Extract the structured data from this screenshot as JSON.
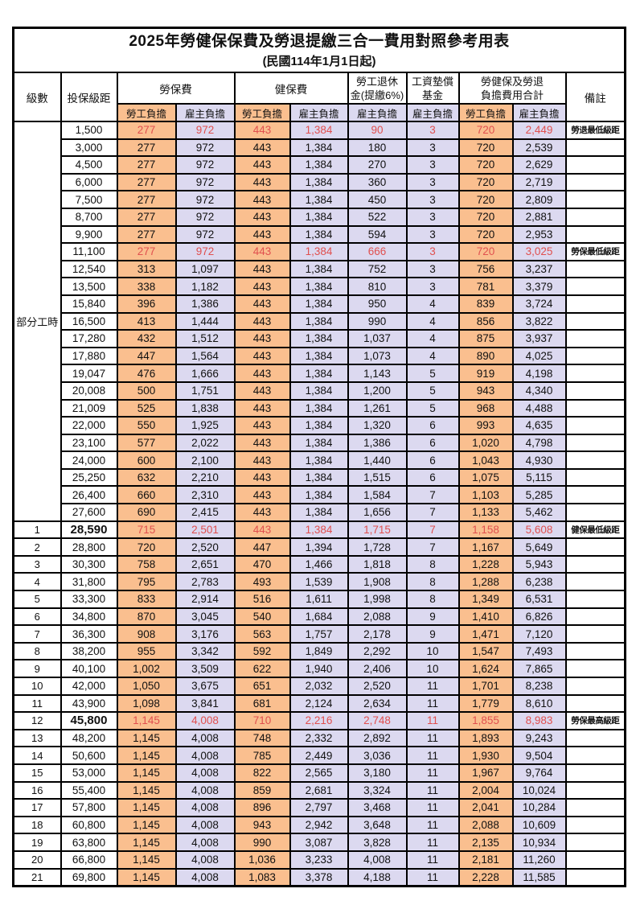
{
  "title": "2025年勞健保保費及勞退提繳三合一費用對照參考用表",
  "subtitle": "(民國114年1月1日起)",
  "colors": {
    "employee_column_bg": "#fabf8f",
    "employer_column_bg": "#dcd9f0",
    "highlight_text": "#e0504f",
    "border": "#000000"
  },
  "table": {
    "headers": {
      "level": "級數",
      "bracket": "投保級距",
      "labor_insurance": "勞保費",
      "health_insurance": "健保費",
      "pension_line1": "勞工退休",
      "pension_line2": "金(提繳6%)",
      "wage_fund_line1": "工資墊償",
      "wage_fund_line2": "基金",
      "total_line1": "勞健保及勞退",
      "total_line2": "負擔費用合計",
      "remark": "備註",
      "employee": "勞工負擔",
      "employer": "雇主負擔"
    },
    "part_time_label": "部分工時",
    "part_time_rowspan": 23,
    "rows": [
      {
        "level": "",
        "bracket": "1,500",
        "values": [
          "277",
          "972",
          "443",
          "1,384",
          "90",
          "3",
          "720",
          "2,449"
        ],
        "remark": "勞退最低級距",
        "red": true,
        "bold": false
      },
      {
        "level": "",
        "bracket": "3,000",
        "values": [
          "277",
          "972",
          "443",
          "1,384",
          "180",
          "3",
          "720",
          "2,539"
        ],
        "remark": "",
        "red": false,
        "bold": false
      },
      {
        "level": "",
        "bracket": "4,500",
        "values": [
          "277",
          "972",
          "443",
          "1,384",
          "270",
          "3",
          "720",
          "2,629"
        ],
        "remark": "",
        "red": false,
        "bold": false
      },
      {
        "level": "",
        "bracket": "6,000",
        "values": [
          "277",
          "972",
          "443",
          "1,384",
          "360",
          "3",
          "720",
          "2,719"
        ],
        "remark": "",
        "red": false,
        "bold": false
      },
      {
        "level": "",
        "bracket": "7,500",
        "values": [
          "277",
          "972",
          "443",
          "1,384",
          "450",
          "3",
          "720",
          "2,809"
        ],
        "remark": "",
        "red": false,
        "bold": false
      },
      {
        "level": "",
        "bracket": "8,700",
        "values": [
          "277",
          "972",
          "443",
          "1,384",
          "522",
          "3",
          "720",
          "2,881"
        ],
        "remark": "",
        "red": false,
        "bold": false
      },
      {
        "level": "",
        "bracket": "9,900",
        "values": [
          "277",
          "972",
          "443",
          "1,384",
          "594",
          "3",
          "720",
          "2,953"
        ],
        "remark": "",
        "red": false,
        "bold": false
      },
      {
        "level": "",
        "bracket": "11,100",
        "values": [
          "277",
          "972",
          "443",
          "1,384",
          "666",
          "3",
          "720",
          "3,025"
        ],
        "remark": "勞保最低級距",
        "red": true,
        "bold": false
      },
      {
        "level": "",
        "bracket": "12,540",
        "values": [
          "313",
          "1,097",
          "443",
          "1,384",
          "752",
          "3",
          "756",
          "3,237"
        ],
        "remark": "",
        "red": false,
        "bold": false
      },
      {
        "level": "",
        "bracket": "13,500",
        "values": [
          "338",
          "1,182",
          "443",
          "1,384",
          "810",
          "3",
          "781",
          "3,379"
        ],
        "remark": "",
        "red": false,
        "bold": false
      },
      {
        "level": "",
        "bracket": "15,840",
        "values": [
          "396",
          "1,386",
          "443",
          "1,384",
          "950",
          "4",
          "839",
          "3,724"
        ],
        "remark": "",
        "red": false,
        "bold": false
      },
      {
        "level": "",
        "bracket": "16,500",
        "values": [
          "413",
          "1,444",
          "443",
          "1,384",
          "990",
          "4",
          "856",
          "3,822"
        ],
        "remark": "",
        "red": false,
        "bold": false
      },
      {
        "level": "",
        "bracket": "17,280",
        "values": [
          "432",
          "1,512",
          "443",
          "1,384",
          "1,037",
          "4",
          "875",
          "3,937"
        ],
        "remark": "",
        "red": false,
        "bold": false
      },
      {
        "level": "",
        "bracket": "17,880",
        "values": [
          "447",
          "1,564",
          "443",
          "1,384",
          "1,073",
          "4",
          "890",
          "4,025"
        ],
        "remark": "",
        "red": false,
        "bold": false
      },
      {
        "level": "",
        "bracket": "19,047",
        "values": [
          "476",
          "1,666",
          "443",
          "1,384",
          "1,143",
          "5",
          "919",
          "4,198"
        ],
        "remark": "",
        "red": false,
        "bold": false
      },
      {
        "level": "",
        "bracket": "20,008",
        "values": [
          "500",
          "1,751",
          "443",
          "1,384",
          "1,200",
          "5",
          "943",
          "4,340"
        ],
        "remark": "",
        "red": false,
        "bold": false
      },
      {
        "level": "",
        "bracket": "21,009",
        "values": [
          "525",
          "1,838",
          "443",
          "1,384",
          "1,261",
          "5",
          "968",
          "4,488"
        ],
        "remark": "",
        "red": false,
        "bold": false
      },
      {
        "level": "",
        "bracket": "22,000",
        "values": [
          "550",
          "1,925",
          "443",
          "1,384",
          "1,320",
          "6",
          "993",
          "4,635"
        ],
        "remark": "",
        "red": false,
        "bold": false
      },
      {
        "level": "",
        "bracket": "23,100",
        "values": [
          "577",
          "2,022",
          "443",
          "1,384",
          "1,386",
          "6",
          "1,020",
          "4,798"
        ],
        "remark": "",
        "red": false,
        "bold": false
      },
      {
        "level": "",
        "bracket": "24,000",
        "values": [
          "600",
          "2,100",
          "443",
          "1,384",
          "1,440",
          "6",
          "1,043",
          "4,930"
        ],
        "remark": "",
        "red": false,
        "bold": false
      },
      {
        "level": "",
        "bracket": "25,250",
        "values": [
          "632",
          "2,210",
          "443",
          "1,384",
          "1,515",
          "6",
          "1,075",
          "5,115"
        ],
        "remark": "",
        "red": false,
        "bold": false
      },
      {
        "level": "",
        "bracket": "26,400",
        "values": [
          "660",
          "2,310",
          "443",
          "1,384",
          "1,584",
          "7",
          "1,103",
          "5,285"
        ],
        "remark": "",
        "red": false,
        "bold": false
      },
      {
        "level": "",
        "bracket": "27,600",
        "values": [
          "690",
          "2,415",
          "443",
          "1,384",
          "1,656",
          "7",
          "1,133",
          "5,462"
        ],
        "remark": "",
        "red": false,
        "bold": false
      },
      {
        "level": "1",
        "bracket": "28,590",
        "values": [
          "715",
          "2,501",
          "443",
          "1,384",
          "1,715",
          "7",
          "1,158",
          "5,608"
        ],
        "remark": "健保最低級距",
        "red": true,
        "bold": true
      },
      {
        "level": "2",
        "bracket": "28,800",
        "values": [
          "720",
          "2,520",
          "447",
          "1,394",
          "1,728",
          "7",
          "1,167",
          "5,649"
        ],
        "remark": "",
        "red": false,
        "bold": false
      },
      {
        "level": "3",
        "bracket": "30,300",
        "values": [
          "758",
          "2,651",
          "470",
          "1,466",
          "1,818",
          "8",
          "1,228",
          "5,943"
        ],
        "remark": "",
        "red": false,
        "bold": false
      },
      {
        "level": "4",
        "bracket": "31,800",
        "values": [
          "795",
          "2,783",
          "493",
          "1,539",
          "1,908",
          "8",
          "1,288",
          "6,238"
        ],
        "remark": "",
        "red": false,
        "bold": false
      },
      {
        "level": "5",
        "bracket": "33,300",
        "values": [
          "833",
          "2,914",
          "516",
          "1,611",
          "1,998",
          "8",
          "1,349",
          "6,531"
        ],
        "remark": "",
        "red": false,
        "bold": false
      },
      {
        "level": "6",
        "bracket": "34,800",
        "values": [
          "870",
          "3,045",
          "540",
          "1,684",
          "2,088",
          "9",
          "1,410",
          "6,826"
        ],
        "remark": "",
        "red": false,
        "bold": false
      },
      {
        "level": "7",
        "bracket": "36,300",
        "values": [
          "908",
          "3,176",
          "563",
          "1,757",
          "2,178",
          "9",
          "1,471",
          "7,120"
        ],
        "remark": "",
        "red": false,
        "bold": false
      },
      {
        "level": "8",
        "bracket": "38,200",
        "values": [
          "955",
          "3,342",
          "592",
          "1,849",
          "2,292",
          "10",
          "1,547",
          "7,493"
        ],
        "remark": "",
        "red": false,
        "bold": false
      },
      {
        "level": "9",
        "bracket": "40,100",
        "values": [
          "1,002",
          "3,509",
          "622",
          "1,940",
          "2,406",
          "10",
          "1,624",
          "7,865"
        ],
        "remark": "",
        "red": false,
        "bold": false
      },
      {
        "level": "10",
        "bracket": "42,000",
        "values": [
          "1,050",
          "3,675",
          "651",
          "2,032",
          "2,520",
          "11",
          "1,701",
          "8,238"
        ],
        "remark": "",
        "red": false,
        "bold": false
      },
      {
        "level": "11",
        "bracket": "43,900",
        "values": [
          "1,098",
          "3,841",
          "681",
          "2,124",
          "2,634",
          "11",
          "1,779",
          "8,610"
        ],
        "remark": "",
        "red": false,
        "bold": false
      },
      {
        "level": "12",
        "bracket": "45,800",
        "values": [
          "1,145",
          "4,008",
          "710",
          "2,216",
          "2,748",
          "11",
          "1,855",
          "8,983"
        ],
        "remark": "勞保最高級距",
        "red": true,
        "bold": true
      },
      {
        "level": "13",
        "bracket": "48,200",
        "values": [
          "1,145",
          "4,008",
          "748",
          "2,332",
          "2,892",
          "11",
          "1,893",
          "9,243"
        ],
        "remark": "",
        "red": false,
        "bold": false
      },
      {
        "level": "14",
        "bracket": "50,600",
        "values": [
          "1,145",
          "4,008",
          "785",
          "2,449",
          "3,036",
          "11",
          "1,930",
          "9,504"
        ],
        "remark": "",
        "red": false,
        "bold": false
      },
      {
        "level": "15",
        "bracket": "53,000",
        "values": [
          "1,145",
          "4,008",
          "822",
          "2,565",
          "3,180",
          "11",
          "1,967",
          "9,764"
        ],
        "remark": "",
        "red": false,
        "bold": false
      },
      {
        "level": "16",
        "bracket": "55,400",
        "values": [
          "1,145",
          "4,008",
          "859",
          "2,681",
          "3,324",
          "11",
          "2,004",
          "10,024"
        ],
        "remark": "",
        "red": false,
        "bold": false
      },
      {
        "level": "17",
        "bracket": "57,800",
        "values": [
          "1,145",
          "4,008",
          "896",
          "2,797",
          "3,468",
          "11",
          "2,041",
          "10,284"
        ],
        "remark": "",
        "red": false,
        "bold": false
      },
      {
        "level": "18",
        "bracket": "60,800",
        "values": [
          "1,145",
          "4,008",
          "943",
          "2,942",
          "3,648",
          "11",
          "2,088",
          "10,609"
        ],
        "remark": "",
        "red": false,
        "bold": false
      },
      {
        "level": "19",
        "bracket": "63,800",
        "values": [
          "1,145",
          "4,008",
          "990",
          "3,087",
          "3,828",
          "11",
          "2,135",
          "10,934"
        ],
        "remark": "",
        "red": false,
        "bold": false
      },
      {
        "level": "20",
        "bracket": "66,800",
        "values": [
          "1,145",
          "4,008",
          "1,036",
          "3,233",
          "4,008",
          "11",
          "2,181",
          "11,260"
        ],
        "remark": "",
        "red": false,
        "bold": false
      },
      {
        "level": "21",
        "bracket": "69,800",
        "values": [
          "1,145",
          "4,008",
          "1,083",
          "3,378",
          "4,188",
          "11",
          "2,228",
          "11,585"
        ],
        "remark": "",
        "red": false,
        "bold": false
      }
    ]
  }
}
